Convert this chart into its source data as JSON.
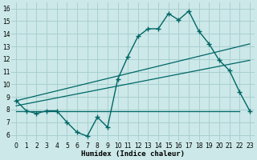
{
  "xlabel": "Humidex (Indice chaleur)",
  "xlim": [
    -0.5,
    23.5
  ],
  "ylim": [
    5.5,
    16.5
  ],
  "xticks": [
    0,
    1,
    2,
    3,
    4,
    5,
    6,
    7,
    8,
    9,
    10,
    11,
    12,
    13,
    14,
    15,
    16,
    17,
    18,
    19,
    20,
    21,
    22,
    23
  ],
  "yticks": [
    6,
    7,
    8,
    9,
    10,
    11,
    12,
    13,
    14,
    15,
    16
  ],
  "bg_color": "#cce8e8",
  "grid_color": "#a8d0d0",
  "line_color": "#006666",
  "line1_x": [
    0,
    1,
    2,
    3,
    4,
    5,
    6,
    7,
    8,
    9,
    10,
    11,
    12,
    13,
    14,
    15,
    16,
    17,
    18,
    19,
    20,
    21,
    22,
    23
  ],
  "line1_y": [
    8.7,
    7.9,
    7.7,
    7.9,
    7.9,
    7.0,
    6.2,
    5.9,
    7.4,
    6.6,
    10.4,
    12.2,
    13.8,
    14.4,
    14.4,
    15.6,
    15.1,
    15.8,
    14.2,
    13.2,
    11.9,
    11.1,
    9.4,
    7.9
  ],
  "trend1_x": [
    0,
    23
  ],
  "trend1_y": [
    8.3,
    11.9
  ],
  "trend2_x": [
    0,
    23
  ],
  "trend2_y": [
    8.7,
    13.2
  ],
  "flat_line_x": [
    0,
    22
  ],
  "flat_line_y": [
    7.9,
    7.9
  ],
  "xlabel_fontsize": 6.5,
  "tick_fontsize": 5.5
}
